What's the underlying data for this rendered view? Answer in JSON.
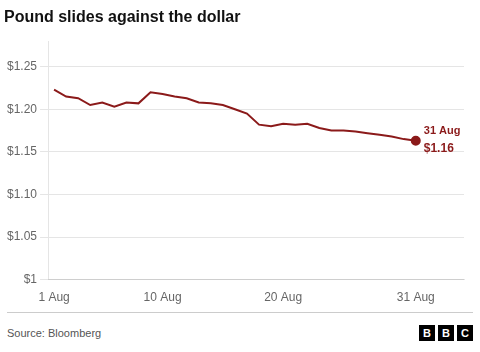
{
  "chart_data": {
    "type": "line",
    "title": "Pound slides against the dollar",
    "source": "Source: Bloomberg",
    "logo": "BBC",
    "x": [
      0,
      1,
      2,
      3,
      4,
      5,
      6,
      7,
      8,
      9,
      10,
      11,
      12,
      13,
      14,
      15,
      16,
      17,
      18,
      19,
      20,
      21,
      22,
      23,
      24,
      25,
      26,
      27,
      28,
      29,
      30
    ],
    "values": [
      1.223,
      1.215,
      1.213,
      1.205,
      1.208,
      1.203,
      1.208,
      1.207,
      1.22,
      1.218,
      1.215,
      1.213,
      1.208,
      1.207,
      1.205,
      1.2,
      1.195,
      1.182,
      1.18,
      1.183,
      1.182,
      1.183,
      1.178,
      1.175,
      1.175,
      1.174,
      1.172,
      1.17,
      1.168,
      1.165,
      1.163
    ],
    "color": "#8B1A1A",
    "marker": "end",
    "xlim": [
      -0.5,
      34
    ],
    "xticks": [
      {
        "value": 0,
        "label": "1 Aug"
      },
      {
        "value": 9,
        "label": "10 Aug"
      },
      {
        "value": 19,
        "label": "20 Aug"
      },
      {
        "value": 30,
        "label": "31 Aug"
      }
    ],
    "ylim": [
      1.0,
      1.28
    ],
    "yticks": [
      {
        "value": 1.0,
        "label": "$1"
      },
      {
        "value": 1.05,
        "label": "$1.05"
      },
      {
        "value": 1.1,
        "label": "$1.10"
      },
      {
        "value": 1.15,
        "label": "$1.15"
      },
      {
        "value": 1.2,
        "label": "$1.20"
      },
      {
        "value": 1.25,
        "label": "$1.25"
      }
    ],
    "grid": "y",
    "annotations": [
      {
        "x": 30,
        "y": 1.163,
        "text": "31 Aug"
      },
      {
        "x": 30,
        "y": 1.163,
        "text": "$1.16"
      }
    ]
  }
}
